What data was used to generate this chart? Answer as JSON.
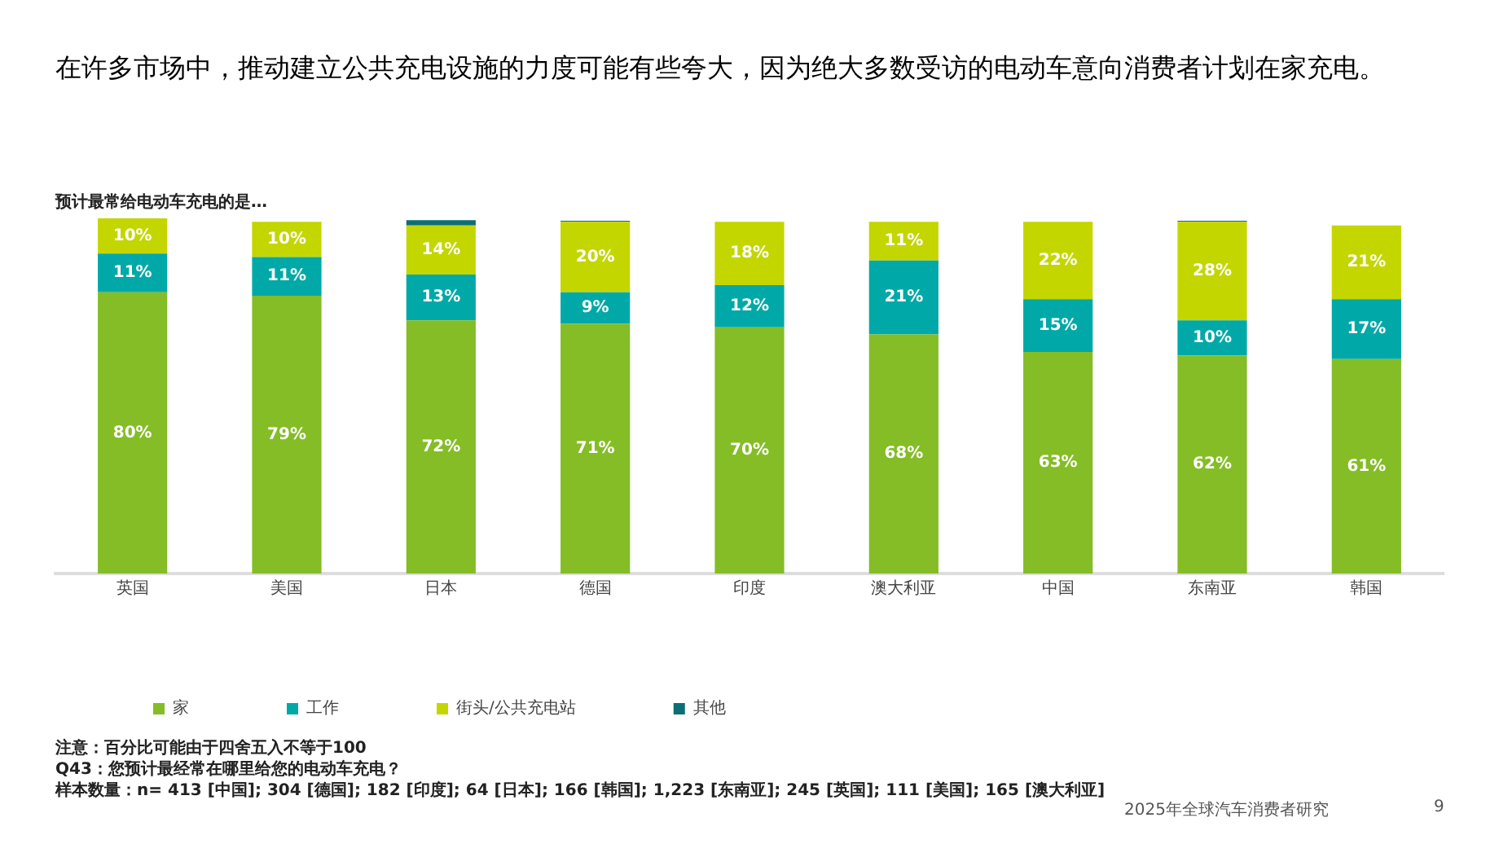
{
  "chart_data": {
    "type": "bar",
    "stacked": true,
    "title": "在许多市场中，推动建立公共充电设施的力度可能有些夸大，因为绝大多数受访的电动车意向消费者计划在家充电。",
    "subtitle": "预计最常给电动车充电的是…",
    "categories": [
      "英国",
      "美国",
      "日本",
      "德国",
      "印度",
      "澳大利亚",
      "中国",
      "东南亚",
      "韩国"
    ],
    "series": [
      {
        "name": "家",
        "color": "#84bd26",
        "values": [
          80,
          79,
          72,
          71,
          70,
          68,
          63,
          62,
          61
        ],
        "value_labels": [
          "80%",
          "79%",
          "72%",
          "71%",
          "70%",
          "68%",
          "63%",
          "62%",
          "61%"
        ]
      },
      {
        "name": "工作",
        "color": "#00a9a7",
        "values": [
          11,
          11,
          13,
          9,
          12,
          21,
          15,
          10,
          17
        ],
        "value_labels": [
          "11%",
          "11%",
          "13%",
          "9%",
          "12%",
          "21%",
          "15%",
          "10%",
          "17%"
        ]
      },
      {
        "name": "街头/公共充电站",
        "color": "#c4d600",
        "values": [
          10,
          10,
          14,
          20,
          18,
          11,
          22,
          28,
          21
        ],
        "value_labels": [
          "10%",
          "10%",
          "14%",
          "20%",
          "18%",
          "11%",
          "22%",
          "28%",
          "21%"
        ]
      },
      {
        "name": "其他",
        "color": "#0d6e76",
        "values": [
          0,
          0,
          1.5,
          0.3,
          0,
          0,
          0,
          0.3,
          0
        ]
      }
    ],
    "ylim": [
      0,
      101
    ],
    "tick_labels": "x",
    "grid": false,
    "legend": "bottom",
    "annotations": [
      "注意：百分比可能由于四舍五入不等于100",
      "Q43：您预计最经常在哪里给您的电动车充电？",
      "样本数量：n= 413 [中国]; 304 [德国]; 182 [印度]; 64 [日本]; 166 [韩国]; 1,223 [东南亚]; 245 [英国]; 111 [美国]; 165 [澳大利亚]",
      "2025年全球汽车消费者研究",
      "9"
    ]
  }
}
